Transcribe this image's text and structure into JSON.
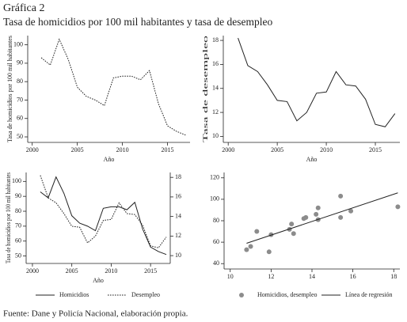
{
  "title": "Gráfica 2",
  "subtitle": "Tasa de homicidios por 100 mil habitantes y tasa de desempleo",
  "source": "Fuente: Dane y Policía Nacional, elaboración propia.",
  "chart_data": [
    {
      "type": "line",
      "ylabel": "Tasa de homicidios por 100 mil habitantes",
      "xlabel": "Año",
      "x": [
        2001,
        2002,
        2003,
        2004,
        2005,
        2006,
        2007,
        2008,
        2009,
        2010,
        2011,
        2012,
        2013,
        2014,
        2015,
        2016,
        2017
      ],
      "series": [
        {
          "name": "Homicidios",
          "color": "#222222",
          "dash": true,
          "values": [
            93,
            89,
            103,
            92,
            77,
            72,
            70,
            67,
            82,
            83,
            83,
            81,
            86,
            68,
            56,
            53,
            51
          ]
        }
      ],
      "xlim": [
        1999.5,
        2017.5
      ],
      "xticks": [
        2000,
        2005,
        2010,
        2015
      ],
      "ylim": [
        47,
        105
      ],
      "yticks": [
        50,
        60,
        70,
        80,
        90,
        100
      ]
    },
    {
      "type": "line",
      "ylabel": "Tasa de desempleo",
      "xlabel": "Año",
      "x": [
        2001,
        2002,
        2003,
        2004,
        2005,
        2006,
        2007,
        2008,
        2009,
        2010,
        2011,
        2012,
        2013,
        2014,
        2015,
        2016,
        2017
      ],
      "series": [
        {
          "name": "Desempleo",
          "color": "#222222",
          "dash": false,
          "values": [
            18.2,
            15.9,
            15.4,
            14.3,
            13.0,
            12.9,
            11.3,
            12.0,
            13.6,
            13.7,
            15.4,
            14.3,
            14.2,
            13.1,
            11.0,
            10.8,
            11.9
          ]
        }
      ],
      "xlim": [
        1999.5,
        2017.5
      ],
      "xticks": [
        2000,
        2005,
        2010,
        2015
      ],
      "ylim": [
        9.5,
        18.4
      ],
      "yticks": [
        10,
        12,
        14,
        16,
        18
      ]
    },
    {
      "type": "line",
      "ylabel": "Tasa de homicidios por 100 mil habitantes",
      "xlabel": "Año",
      "x": [
        2001,
        2002,
        2003,
        2004,
        2005,
        2006,
        2007,
        2008,
        2009,
        2010,
        2011,
        2012,
        2013,
        2014,
        2015,
        2016,
        2017
      ],
      "series": [
        {
          "name": "Homicidios",
          "color": "#222222",
          "dash": false,
          "values": [
            93,
            89,
            103,
            92,
            77,
            72,
            70,
            67,
            82,
            83,
            83,
            81,
            86,
            68,
            56,
            53,
            51
          ]
        },
        {
          "name": "Desempleo",
          "color": "#222222",
          "dash": true,
          "axis": "y2",
          "values": [
            18.2,
            15.9,
            15.4,
            14.3,
            13.0,
            12.9,
            11.3,
            12.0,
            13.6,
            13.7,
            15.4,
            14.3,
            14.2,
            13.1,
            11.0,
            10.8,
            11.9
          ]
        }
      ],
      "xlim": [
        1999.2,
        2017.5
      ],
      "xticks": [
        2000,
        2005,
        2010,
        2015
      ],
      "ylim": [
        45,
        106
      ],
      "yticks": [
        50,
        60,
        70,
        80,
        90,
        100
      ],
      "y2lim": [
        9.2,
        18.5
      ],
      "y2ticks": [
        10,
        12,
        14,
        16,
        18
      ],
      "legend": "bottom"
    },
    {
      "type": "scatter",
      "series": [
        {
          "name": "Homicidios, desempleo",
          "color": "#8c8c8c",
          "type": "scatter",
          "x": [
            18.2,
            15.9,
            15.4,
            14.3,
            13.0,
            12.9,
            11.3,
            12.0,
            13.6,
            13.7,
            15.4,
            14.3,
            14.2,
            13.1,
            11.0,
            10.8,
            11.9
          ],
          "values": [
            93,
            89,
            103,
            92,
            77,
            72,
            70,
            67,
            82,
            83,
            83,
            81,
            86,
            68,
            56,
            53,
            51
          ]
        },
        {
          "name": "Línea de regresión",
          "color": "#222222",
          "type": "line",
          "x": [
            10.8,
            18.2
          ],
          "values": [
            59,
            106
          ]
        }
      ],
      "xlim": [
        9.7,
        18.3
      ],
      "xticks": [
        10,
        12,
        14,
        16,
        18
      ],
      "ylim": [
        35,
        125
      ],
      "yticks": [
        40,
        60,
        80,
        100,
        120
      ],
      "legend": "bottom"
    }
  ]
}
